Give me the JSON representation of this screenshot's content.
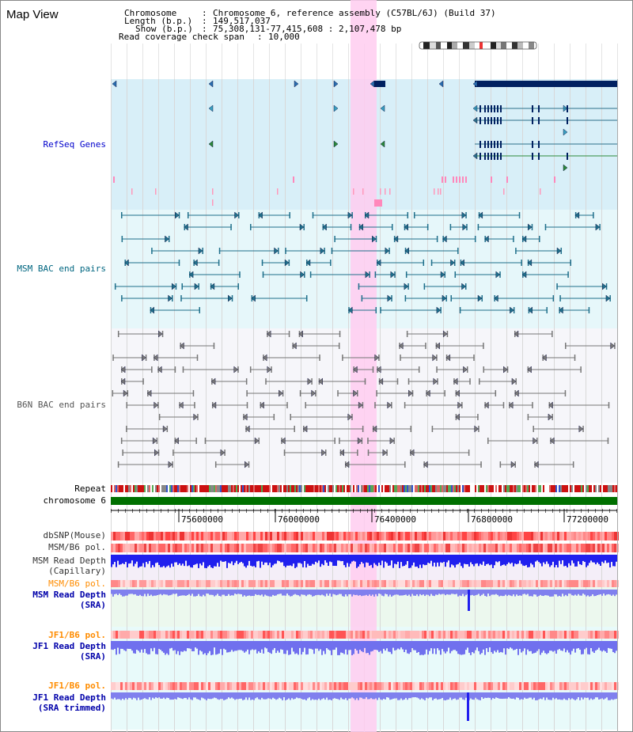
{
  "title": "Map View",
  "info": {
    "chromosome_key": "Chromosome",
    "chromosome_val": "Chromosome 6, reference assembly (C57BL/6J) (Build 37)",
    "length_key": "Length (b.p.)",
    "length_val": "149,517,037",
    "show_key": "Show (b.p.)",
    "show_val": "75,308,131-77,415,608 : 2,107,478 bp",
    "coverage_key": "Read coverage check span",
    "coverage_val": "10,000"
  },
  "tracks": {
    "refseq": "RefSeq Genes",
    "msm_bac": "MSM BAC end pairs",
    "b6n_bac": "B6N BAC end pairs",
    "repeat": "Repeat",
    "chromosome": "chromosome 6",
    "dbsnp": "dbSNP(Mouse)",
    "msm_b6_pol_1": "MSM/B6 pol.",
    "msm_depth_cap_1": "MSM Read Depth",
    "msm_depth_cap_2": "(Capillary)",
    "msm_b6_pol_2": "MSM/B6 pol.",
    "msm_depth_sra_1": "MSM Read Depth",
    "msm_depth_sra_2": "(SRA)",
    "jf1_b6_pol_1": "JF1/B6 pol.",
    "jf1_depth_sra_1": "JF1 Read Depth",
    "jf1_depth_sra_2": "(SRA)",
    "jf1_b6_pol_2": "JF1/B6 pol.",
    "jf1_depth_trim_1": "JF1 Read Depth",
    "jf1_depth_trim_2": "(SRA trimmed)"
  },
  "ruler": {
    "ticks": [
      "75600000",
      "76000000",
      "76400000",
      "76800000",
      "77200000"
    ]
  },
  "colors": {
    "refseq_label": "#0000cc",
    "msm_label": "#006680",
    "b6n_label": "#555555",
    "orange_label": "#ff8c00",
    "blue_label": "#0000aa",
    "highlight": "#ffccf0",
    "gene_dark": "#002060",
    "repeat_red": "#cc0000",
    "chrom_green": "#007000",
    "depth_blue": "#2020ee",
    "depth_light": "#7070ee"
  }
}
